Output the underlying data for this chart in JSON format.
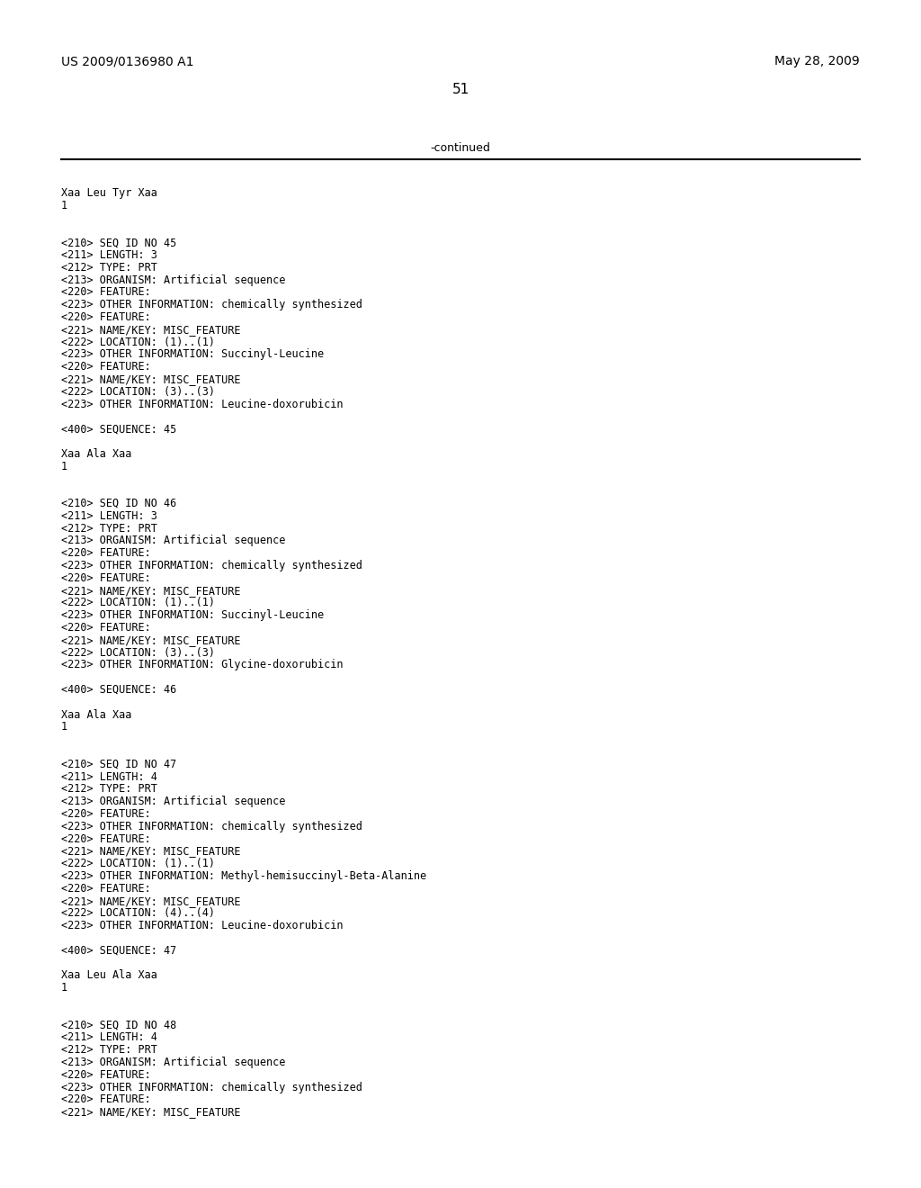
{
  "header_left": "US 2009/0136980 A1",
  "header_right": "May 28, 2009",
  "page_number": "51",
  "continued_label": "-continued",
  "background_color": "#ffffff",
  "text_color": "#000000",
  "fig_width": 10.24,
  "fig_height": 13.2,
  "dpi": 100,
  "lines": [
    {
      "text": "Xaa Leu Tyr Xaa",
      "font": "mono",
      "size": 8.5,
      "blank_before": 0
    },
    {
      "text": "1",
      "font": "mono",
      "size": 8.5,
      "blank_before": 0
    },
    {
      "text": "",
      "font": "mono",
      "size": 8.5,
      "blank_before": 0
    },
    {
      "text": "",
      "font": "mono",
      "size": 8.5,
      "blank_before": 0
    },
    {
      "text": "<210> SEQ ID NO 45",
      "font": "mono",
      "size": 8.5,
      "blank_before": 0
    },
    {
      "text": "<211> LENGTH: 3",
      "font": "mono",
      "size": 8.5,
      "blank_before": 0
    },
    {
      "text": "<212> TYPE: PRT",
      "font": "mono",
      "size": 8.5,
      "blank_before": 0
    },
    {
      "text": "<213> ORGANISM: Artificial sequence",
      "font": "mono",
      "size": 8.5,
      "blank_before": 0
    },
    {
      "text": "<220> FEATURE:",
      "font": "mono",
      "size": 8.5,
      "blank_before": 0
    },
    {
      "text": "<223> OTHER INFORMATION: chemically synthesized",
      "font": "mono",
      "size": 8.5,
      "blank_before": 0
    },
    {
      "text": "<220> FEATURE:",
      "font": "mono",
      "size": 8.5,
      "blank_before": 0
    },
    {
      "text": "<221> NAME/KEY: MISC_FEATURE",
      "font": "mono",
      "size": 8.5,
      "blank_before": 0
    },
    {
      "text": "<222> LOCATION: (1)..(1)",
      "font": "mono",
      "size": 8.5,
      "blank_before": 0
    },
    {
      "text": "<223> OTHER INFORMATION: Succinyl-Leucine",
      "font": "mono",
      "size": 8.5,
      "blank_before": 0
    },
    {
      "text": "<220> FEATURE:",
      "font": "mono",
      "size": 8.5,
      "blank_before": 0
    },
    {
      "text": "<221> NAME/KEY: MISC_FEATURE",
      "font": "mono",
      "size": 8.5,
      "blank_before": 0
    },
    {
      "text": "<222> LOCATION: (3)..(3)",
      "font": "mono",
      "size": 8.5,
      "blank_before": 0
    },
    {
      "text": "<223> OTHER INFORMATION: Leucine-doxorubicin",
      "font": "mono",
      "size": 8.5,
      "blank_before": 0
    },
    {
      "text": "",
      "font": "mono",
      "size": 8.5,
      "blank_before": 0
    },
    {
      "text": "<400> SEQUENCE: 45",
      "font": "mono",
      "size": 8.5,
      "blank_before": 0
    },
    {
      "text": "",
      "font": "mono",
      "size": 8.5,
      "blank_before": 0
    },
    {
      "text": "Xaa Ala Xaa",
      "font": "mono",
      "size": 8.5,
      "blank_before": 0
    },
    {
      "text": "1",
      "font": "mono",
      "size": 8.5,
      "blank_before": 0
    },
    {
      "text": "",
      "font": "mono",
      "size": 8.5,
      "blank_before": 0
    },
    {
      "text": "",
      "font": "mono",
      "size": 8.5,
      "blank_before": 0
    },
    {
      "text": "<210> SEQ ID NO 46",
      "font": "mono",
      "size": 8.5,
      "blank_before": 0
    },
    {
      "text": "<211> LENGTH: 3",
      "font": "mono",
      "size": 8.5,
      "blank_before": 0
    },
    {
      "text": "<212> TYPE: PRT",
      "font": "mono",
      "size": 8.5,
      "blank_before": 0
    },
    {
      "text": "<213> ORGANISM: Artificial sequence",
      "font": "mono",
      "size": 8.5,
      "blank_before": 0
    },
    {
      "text": "<220> FEATURE:",
      "font": "mono",
      "size": 8.5,
      "blank_before": 0
    },
    {
      "text": "<223> OTHER INFORMATION: chemically synthesized",
      "font": "mono",
      "size": 8.5,
      "blank_before": 0
    },
    {
      "text": "<220> FEATURE:",
      "font": "mono",
      "size": 8.5,
      "blank_before": 0
    },
    {
      "text": "<221> NAME/KEY: MISC_FEATURE",
      "font": "mono",
      "size": 8.5,
      "blank_before": 0
    },
    {
      "text": "<222> LOCATION: (1)..(1)",
      "font": "mono",
      "size": 8.5,
      "blank_before": 0
    },
    {
      "text": "<223> OTHER INFORMATION: Succinyl-Leucine",
      "font": "mono",
      "size": 8.5,
      "blank_before": 0
    },
    {
      "text": "<220> FEATURE:",
      "font": "mono",
      "size": 8.5,
      "blank_before": 0
    },
    {
      "text": "<221> NAME/KEY: MISC_FEATURE",
      "font": "mono",
      "size": 8.5,
      "blank_before": 0
    },
    {
      "text": "<222> LOCATION: (3)..(3)",
      "font": "mono",
      "size": 8.5,
      "blank_before": 0
    },
    {
      "text": "<223> OTHER INFORMATION: Glycine-doxorubicin",
      "font": "mono",
      "size": 8.5,
      "blank_before": 0
    },
    {
      "text": "",
      "font": "mono",
      "size": 8.5,
      "blank_before": 0
    },
    {
      "text": "<400> SEQUENCE: 46",
      "font": "mono",
      "size": 8.5,
      "blank_before": 0
    },
    {
      "text": "",
      "font": "mono",
      "size": 8.5,
      "blank_before": 0
    },
    {
      "text": "Xaa Ala Xaa",
      "font": "mono",
      "size": 8.5,
      "blank_before": 0
    },
    {
      "text": "1",
      "font": "mono",
      "size": 8.5,
      "blank_before": 0
    },
    {
      "text": "",
      "font": "mono",
      "size": 8.5,
      "blank_before": 0
    },
    {
      "text": "",
      "font": "mono",
      "size": 8.5,
      "blank_before": 0
    },
    {
      "text": "<210> SEQ ID NO 47",
      "font": "mono",
      "size": 8.5,
      "blank_before": 0
    },
    {
      "text": "<211> LENGTH: 4",
      "font": "mono",
      "size": 8.5,
      "blank_before": 0
    },
    {
      "text": "<212> TYPE: PRT",
      "font": "mono",
      "size": 8.5,
      "blank_before": 0
    },
    {
      "text": "<213> ORGANISM: Artificial sequence",
      "font": "mono",
      "size": 8.5,
      "blank_before": 0
    },
    {
      "text": "<220> FEATURE:",
      "font": "mono",
      "size": 8.5,
      "blank_before": 0
    },
    {
      "text": "<223> OTHER INFORMATION: chemically synthesized",
      "font": "mono",
      "size": 8.5,
      "blank_before": 0
    },
    {
      "text": "<220> FEATURE:",
      "font": "mono",
      "size": 8.5,
      "blank_before": 0
    },
    {
      "text": "<221> NAME/KEY: MISC_FEATURE",
      "font": "mono",
      "size": 8.5,
      "blank_before": 0
    },
    {
      "text": "<222> LOCATION: (1)..(1)",
      "font": "mono",
      "size": 8.5,
      "blank_before": 0
    },
    {
      "text": "<223> OTHER INFORMATION: Methyl-hemisuccinyl-Beta-Alanine",
      "font": "mono",
      "size": 8.5,
      "blank_before": 0
    },
    {
      "text": "<220> FEATURE:",
      "font": "mono",
      "size": 8.5,
      "blank_before": 0
    },
    {
      "text": "<221> NAME/KEY: MISC_FEATURE",
      "font": "mono",
      "size": 8.5,
      "blank_before": 0
    },
    {
      "text": "<222> LOCATION: (4)..(4)",
      "font": "mono",
      "size": 8.5,
      "blank_before": 0
    },
    {
      "text": "<223> OTHER INFORMATION: Leucine-doxorubicin",
      "font": "mono",
      "size": 8.5,
      "blank_before": 0
    },
    {
      "text": "",
      "font": "mono",
      "size": 8.5,
      "blank_before": 0
    },
    {
      "text": "<400> SEQUENCE: 47",
      "font": "mono",
      "size": 8.5,
      "blank_before": 0
    },
    {
      "text": "",
      "font": "mono",
      "size": 8.5,
      "blank_before": 0
    },
    {
      "text": "Xaa Leu Ala Xaa",
      "font": "mono",
      "size": 8.5,
      "blank_before": 0
    },
    {
      "text": "1",
      "font": "mono",
      "size": 8.5,
      "blank_before": 0
    },
    {
      "text": "",
      "font": "mono",
      "size": 8.5,
      "blank_before": 0
    },
    {
      "text": "",
      "font": "mono",
      "size": 8.5,
      "blank_before": 0
    },
    {
      "text": "<210> SEQ ID NO 48",
      "font": "mono",
      "size": 8.5,
      "blank_before": 0
    },
    {
      "text": "<211> LENGTH: 4",
      "font": "mono",
      "size": 8.5,
      "blank_before": 0
    },
    {
      "text": "<212> TYPE: PRT",
      "font": "mono",
      "size": 8.5,
      "blank_before": 0
    },
    {
      "text": "<213> ORGANISM: Artificial sequence",
      "font": "mono",
      "size": 8.5,
      "blank_before": 0
    },
    {
      "text": "<220> FEATURE:",
      "font": "mono",
      "size": 8.5,
      "blank_before": 0
    },
    {
      "text": "<223> OTHER INFORMATION: chemically synthesized",
      "font": "mono",
      "size": 8.5,
      "blank_before": 0
    },
    {
      "text": "<220> FEATURE:",
      "font": "mono",
      "size": 8.5,
      "blank_before": 0
    },
    {
      "text": "<221> NAME/KEY: MISC_FEATURE",
      "font": "mono",
      "size": 8.5,
      "blank_before": 0
    }
  ]
}
